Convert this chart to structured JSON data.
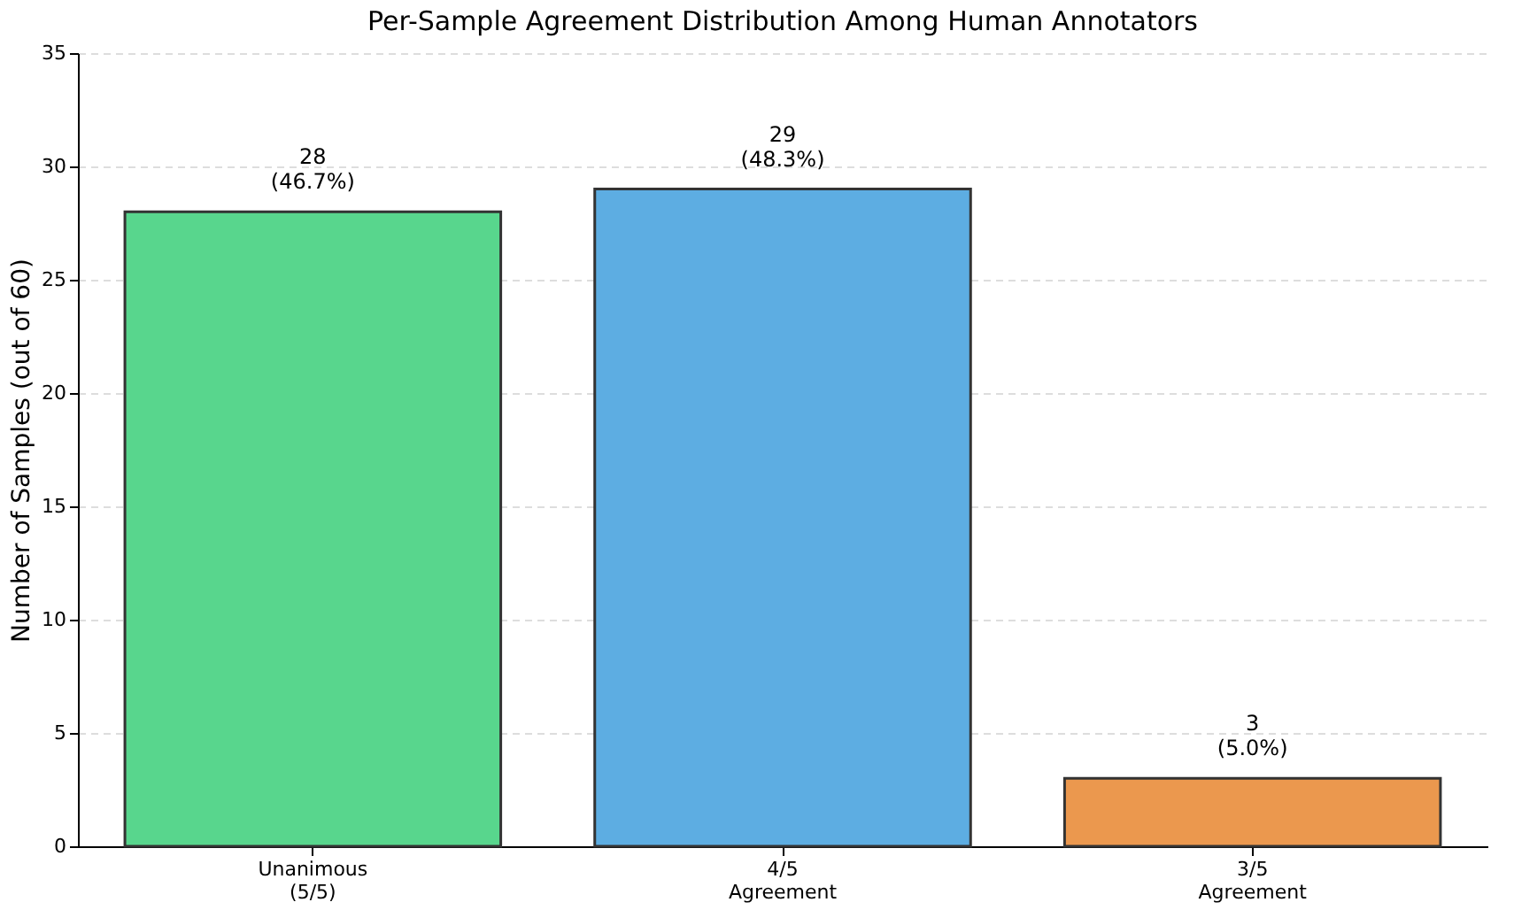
{
  "chart_data": {
    "type": "bar",
    "title": "Per-Sample Agreement Distribution Among Human Annotators",
    "ylabel": "Number of Samples (out of 60)",
    "categories": [
      "Unanimous\n(5/5)",
      "4/5\nAgreement",
      "3/5\nAgreement"
    ],
    "values": [
      28,
      29,
      3
    ],
    "colors": [
      "#58d68d",
      "#5dade2",
      "#eb984e"
    ],
    "value_labels": [
      "28\n(46.7%)",
      "29\n(48.3%)",
      "3\n(5.0%)"
    ],
    "ylim": [
      0,
      35
    ],
    "yticks": [
      0,
      5,
      10,
      15,
      20,
      25,
      30,
      35
    ],
    "grid": "y"
  }
}
